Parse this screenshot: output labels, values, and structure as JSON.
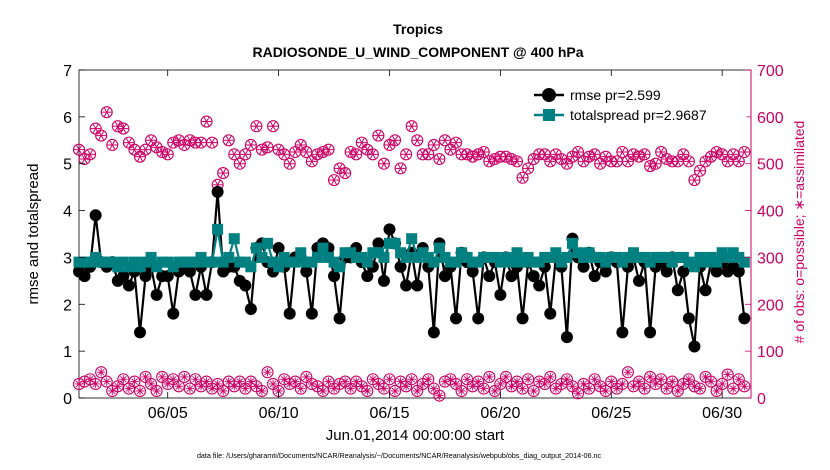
{
  "chart_data": {
    "type": "line",
    "title": "Tropics",
    "subtitle": "RADIOSONDE_U_WIND_COMPONENT @ 400 hPa",
    "xlabel": "Jun.01,2014 00:00:00 start",
    "ylabel": "rmse and totalspread",
    "ylabel_right": "# of obs: o=possible; ∗=assimilated",
    "footer": "data file: /Users/gharamti/Documents/NCAR/Reanalysis/~/Documents/NCAR/Reanalysis/webpub/obs_diag_output_2014-06.nc",
    "xlim": [
      1,
      31.3
    ],
    "ylim": [
      0,
      7
    ],
    "ylim_right": [
      0,
      700
    ],
    "xticks": [
      {
        "value": 5,
        "label": "06/05"
      },
      {
        "value": 10,
        "label": "06/10"
      },
      {
        "value": 15,
        "label": "06/15"
      },
      {
        "value": 20,
        "label": "06/20"
      },
      {
        "value": 25,
        "label": "06/25"
      },
      {
        "value": 30,
        "label": "06/30"
      }
    ],
    "yticks": [
      "0",
      "1",
      "2",
      "3",
      "4",
      "5",
      "6",
      "7"
    ],
    "yticks_right": [
      "0",
      "100",
      "200",
      "300",
      "400",
      "500",
      "600",
      "700"
    ],
    "legend_position": "top-right",
    "series": [
      {
        "name": "rmse pr=2.599",
        "axis": "left",
        "color": "#000000",
        "marker": "circle",
        "x": [
          1.0,
          1.25,
          1.5,
          1.75,
          2.0,
          2.25,
          2.5,
          2.75,
          3.0,
          3.25,
          3.5,
          3.75,
          4.0,
          4.25,
          4.5,
          4.75,
          5.0,
          5.25,
          5.5,
          5.75,
          6.0,
          6.25,
          6.5,
          6.75,
          7.0,
          7.25,
          7.5,
          7.75,
          8.0,
          8.25,
          8.5,
          8.75,
          9.0,
          9.25,
          9.5,
          9.75,
          10.0,
          10.25,
          10.5,
          10.75,
          11.0,
          11.25,
          11.5,
          11.75,
          12.0,
          12.25,
          12.5,
          12.75,
          13.0,
          13.25,
          13.5,
          13.75,
          14.0,
          14.25,
          14.5,
          14.75,
          15.0,
          15.25,
          15.5,
          15.75,
          16.0,
          16.25,
          16.5,
          16.75,
          17.0,
          17.25,
          17.5,
          17.75,
          18.0,
          18.25,
          18.5,
          18.75,
          19.0,
          19.25,
          19.5,
          19.75,
          20.0,
          20.25,
          20.5,
          20.75,
          21.0,
          21.25,
          21.5,
          21.75,
          22.0,
          22.25,
          22.5,
          22.75,
          23.0,
          23.25,
          23.5,
          23.75,
          24.0,
          24.25,
          24.5,
          24.75,
          25.0,
          25.25,
          25.5,
          25.75,
          26.0,
          26.25,
          26.5,
          26.75,
          27.0,
          27.25,
          27.5,
          27.75,
          28.0,
          28.25,
          28.5,
          28.75,
          29.0,
          29.25,
          29.5,
          29.75,
          30.0,
          30.25,
          30.5,
          30.75,
          31.0
        ],
        "values": [
          2.7,
          2.6,
          2.8,
          3.9,
          2.9,
          2.8,
          2.9,
          2.5,
          2.6,
          2.4,
          2.7,
          1.4,
          2.6,
          2.8,
          2.2,
          2.6,
          2.6,
          1.8,
          2.7,
          2.8,
          2.7,
          2.2,
          2.8,
          2.2,
          2.9,
          4.4,
          2.7,
          2.8,
          2.8,
          2.5,
          2.4,
          1.9,
          3.2,
          3.3,
          2.9,
          2.7,
          3.2,
          2.8,
          1.8,
          3.0,
          3.0,
          2.7,
          1.8,
          3.2,
          3.3,
          3.2,
          2.6,
          1.7,
          3.0,
          3.0,
          3.2,
          2.9,
          2.6,
          2.8,
          3.3,
          2.5,
          3.6,
          3.3,
          2.8,
          2.4,
          3.1,
          2.4,
          3.2,
          2.8,
          1.4,
          3.3,
          2.6,
          2.8,
          1.7,
          3.1,
          2.9,
          2.7,
          1.7,
          3.0,
          2.6,
          2.9,
          2.2,
          3.0,
          2.6,
          2.8,
          1.7,
          2.9,
          2.6,
          2.4,
          2.8,
          1.8,
          3.0,
          2.8,
          1.3,
          3.4,
          3.0,
          2.8,
          3.1,
          2.6,
          2.9,
          2.7,
          3.0,
          2.9,
          1.4,
          2.8,
          3.0,
          2.5,
          2.9,
          1.4,
          2.8,
          2.9,
          2.7,
          3.0,
          2.3,
          2.7,
          1.7,
          1.1,
          2.8,
          2.3,
          2.9,
          2.7,
          2.9,
          2.7,
          2.8,
          2.7,
          1.7
        ]
      },
      {
        "name": "totalspread pr=2.9687",
        "axis": "left",
        "color": "#008080",
        "marker": "square",
        "x": [
          1.0,
          1.25,
          1.5,
          1.75,
          2.0,
          2.25,
          2.5,
          2.75,
          3.0,
          3.25,
          3.5,
          3.75,
          4.0,
          4.25,
          4.5,
          4.75,
          5.0,
          5.25,
          5.5,
          5.75,
          6.0,
          6.25,
          6.5,
          6.75,
          7.0,
          7.25,
          7.5,
          7.75,
          8.0,
          8.25,
          8.5,
          8.75,
          9.0,
          9.25,
          9.5,
          9.75,
          10.0,
          10.25,
          10.5,
          10.75,
          11.0,
          11.25,
          11.5,
          11.75,
          12.0,
          12.25,
          12.5,
          12.75,
          13.0,
          13.25,
          13.5,
          13.75,
          14.0,
          14.25,
          14.5,
          14.75,
          15.0,
          15.25,
          15.5,
          15.75,
          16.0,
          16.25,
          16.5,
          16.75,
          17.0,
          17.25,
          17.5,
          17.75,
          18.0,
          18.25,
          18.5,
          18.75,
          19.0,
          19.25,
          19.5,
          19.75,
          20.0,
          20.25,
          20.5,
          20.75,
          21.0,
          21.25,
          21.5,
          21.75,
          22.0,
          22.25,
          22.5,
          22.75,
          23.0,
          23.25,
          23.5,
          23.75,
          24.0,
          24.25,
          24.5,
          24.75,
          25.0,
          25.25,
          25.5,
          25.75,
          26.0,
          26.25,
          26.5,
          26.75,
          27.0,
          27.25,
          27.5,
          27.75,
          28.0,
          28.25,
          28.5,
          28.75,
          29.0,
          29.25,
          29.5,
          29.75,
          30.0,
          30.25,
          30.5,
          30.75,
          31.0
        ],
        "values": [
          2.9,
          2.9,
          2.9,
          3.0,
          2.9,
          2.9,
          2.9,
          2.8,
          2.9,
          2.8,
          2.9,
          2.8,
          2.9,
          3.0,
          2.8,
          2.9,
          2.9,
          2.8,
          2.9,
          2.9,
          2.9,
          2.9,
          3.0,
          2.9,
          2.9,
          3.6,
          2.9,
          3.0,
          3.4,
          2.9,
          2.9,
          2.8,
          3.2,
          3.0,
          3.3,
          2.9,
          2.8,
          3.0,
          2.9,
          2.9,
          3.1,
          2.9,
          2.9,
          3.0,
          3.2,
          3.0,
          2.9,
          2.8,
          3.1,
          3.1,
          3.0,
          3.0,
          2.9,
          3.1,
          3.1,
          3.0,
          3.3,
          3.3,
          3.1,
          3.0,
          3.4,
          3.0,
          3.1,
          3.0,
          2.9,
          3.2,
          3.0,
          2.9,
          2.9,
          3.1,
          3.0,
          2.9,
          2.9,
          3.0,
          3.0,
          3.0,
          2.9,
          3.0,
          2.9,
          3.1,
          2.9,
          3.0,
          2.9,
          2.9,
          3.0,
          3.0,
          3.1,
          2.9,
          3.0,
          3.3,
          3.1,
          3.0,
          3.1,
          3.0,
          3.0,
          2.9,
          3.0,
          3.0,
          2.9,
          3.0,
          3.1,
          3.0,
          3.0,
          2.9,
          3.0,
          3.0,
          3.0,
          2.9,
          3.0,
          3.0,
          2.9,
          2.8,
          3.0,
          2.9,
          3.0,
          2.9,
          3.1,
          3.0,
          3.1,
          3.0,
          2.9
        ]
      },
      {
        "name": "possible obs",
        "axis": "right",
        "color": "#cc0066",
        "marker": "circle-open",
        "x": [
          1.0,
          1.25,
          1.5,
          1.75,
          2.0,
          2.25,
          2.5,
          2.75,
          3.0,
          3.25,
          3.5,
          3.75,
          4.0,
          4.25,
          4.5,
          4.75,
          5.0,
          5.25,
          5.5,
          5.75,
          6.0,
          6.25,
          6.5,
          6.75,
          7.0,
          7.25,
          7.5,
          7.75,
          8.0,
          8.25,
          8.5,
          8.75,
          9.0,
          9.25,
          9.5,
          9.75,
          10.0,
          10.25,
          10.5,
          10.75,
          11.0,
          11.25,
          11.5,
          11.75,
          12.0,
          12.25,
          12.5,
          12.75,
          13.0,
          13.25,
          13.5,
          13.75,
          14.0,
          14.25,
          14.5,
          14.75,
          15.0,
          15.25,
          15.5,
          15.75,
          16.0,
          16.25,
          16.5,
          16.75,
          17.0,
          17.25,
          17.5,
          17.75,
          18.0,
          18.25,
          18.5,
          18.75,
          19.0,
          19.25,
          19.5,
          19.75,
          20.0,
          20.25,
          20.5,
          20.75,
          21.0,
          21.25,
          21.5,
          21.75,
          22.0,
          22.25,
          22.5,
          22.75,
          23.0,
          23.25,
          23.5,
          23.75,
          24.0,
          24.25,
          24.5,
          24.75,
          25.0,
          25.25,
          25.5,
          25.75,
          26.0,
          26.25,
          26.5,
          26.75,
          27.0,
          27.25,
          27.5,
          27.75,
          28.0,
          28.25,
          28.5,
          28.75,
          29.0,
          29.25,
          29.5,
          29.75,
          30.0,
          30.25,
          30.5,
          30.75,
          31.0
        ],
        "values": [
          30,
          35,
          40,
          30,
          55,
          35,
          15,
          25,
          40,
          20,
          35,
          15,
          45,
          30,
          15,
          45,
          30,
          40,
          25,
          45,
          20,
          40,
          25,
          35,
          20,
          30,
          15,
          35,
          25,
          35,
          20,
          35,
          25,
          15,
          55,
          30,
          15,
          40,
          30,
          35,
          20,
          45,
          30,
          25,
          15,
          35,
          20,
          30,
          35,
          20,
          35,
          25,
          15,
          40,
          30,
          20,
          40,
          15,
          35,
          25,
          40,
          15,
          30,
          40,
          20,
          5,
          35,
          40,
          30,
          15,
          40,
          25,
          35,
          20,
          45,
          15,
          30,
          45,
          25,
          35,
          20,
          40,
          15,
          35,
          30,
          45,
          20,
          30,
          40,
          25,
          10,
          30,
          20,
          40,
          25,
          15,
          35,
          20,
          30,
          55,
          25,
          35,
          20,
          45,
          30,
          40,
          20,
          35,
          15,
          30,
          40,
          25,
          20,
          45,
          35,
          15,
          30,
          50,
          20,
          40,
          25
        ]
      },
      {
        "name": "assimilated obs",
        "axis": "right",
        "color": "#cc0066",
        "marker": "asterisk",
        "x": [
          1.0,
          1.25,
          1.5,
          1.75,
          2.0,
          2.25,
          2.5,
          2.75,
          3.0,
          3.25,
          3.5,
          3.75,
          4.0,
          4.25,
          4.5,
          4.75,
          5.0,
          5.25,
          5.5,
          5.75,
          6.0,
          6.25,
          6.5,
          6.75,
          7.0,
          7.25,
          7.5,
          7.75,
          8.0,
          8.25,
          8.5,
          8.75,
          9.0,
          9.25,
          9.5,
          9.75,
          10.0,
          10.25,
          10.5,
          10.75,
          11.0,
          11.25,
          11.5,
          11.75,
          12.0,
          12.25,
          12.5,
          12.75,
          13.0,
          13.25,
          13.5,
          13.75,
          14.0,
          14.25,
          14.5,
          14.75,
          15.0,
          15.25,
          15.5,
          15.75,
          16.0,
          16.25,
          16.5,
          16.75,
          17.0,
          17.25,
          17.5,
          17.75,
          18.0,
          18.25,
          18.5,
          18.75,
          19.0,
          19.25,
          19.5,
          19.75,
          20.0,
          20.25,
          20.5,
          20.75,
          21.0,
          21.25,
          21.5,
          21.75,
          22.0,
          22.25,
          22.5,
          22.75,
          23.0,
          23.25,
          23.5,
          23.75,
          24.0,
          24.25,
          24.5,
          24.75,
          25.0,
          25.25,
          25.5,
          25.75,
          26.0,
          26.25,
          26.5,
          26.75,
          27.0,
          27.25,
          27.5,
          27.75,
          28.0,
          28.25,
          28.5,
          28.75,
          29.0,
          29.25,
          29.5,
          29.75,
          30.0,
          30.25,
          30.5,
          30.75,
          31.0
        ],
        "values": [
          530,
          510,
          520,
          575,
          560,
          610,
          540,
          580,
          575,
          545,
          530,
          515,
          530,
          550,
          535,
          525,
          520,
          545,
          550,
          540,
          550,
          545,
          545,
          590,
          545,
          455,
          480,
          550,
          520,
          500,
          520,
          540,
          580,
          530,
          535,
          580,
          530,
          520,
          500,
          525,
          540,
          525,
          505,
          520,
          525,
          530,
          465,
          490,
          480,
          525,
          520,
          545,
          530,
          520,
          560,
          500,
          540,
          550,
          490,
          520,
          580,
          550,
          520,
          520,
          540,
          510,
          550,
          530,
          545,
          520,
          520,
          515,
          520,
          525,
          505,
          510,
          515,
          515,
          510,
          505,
          470,
          490,
          510,
          520,
          520,
          505,
          520,
          510,
          500,
          515,
          525,
          505,
          515,
          520,
          500,
          515,
          505,
          505,
          525,
          505,
          520,
          515,
          520,
          495,
          500,
          525,
          510,
          505,
          505,
          520,
          505,
          465,
          485,
          505,
          515,
          525,
          520,
          505,
          520,
          505,
          525
        ]
      }
    ]
  }
}
